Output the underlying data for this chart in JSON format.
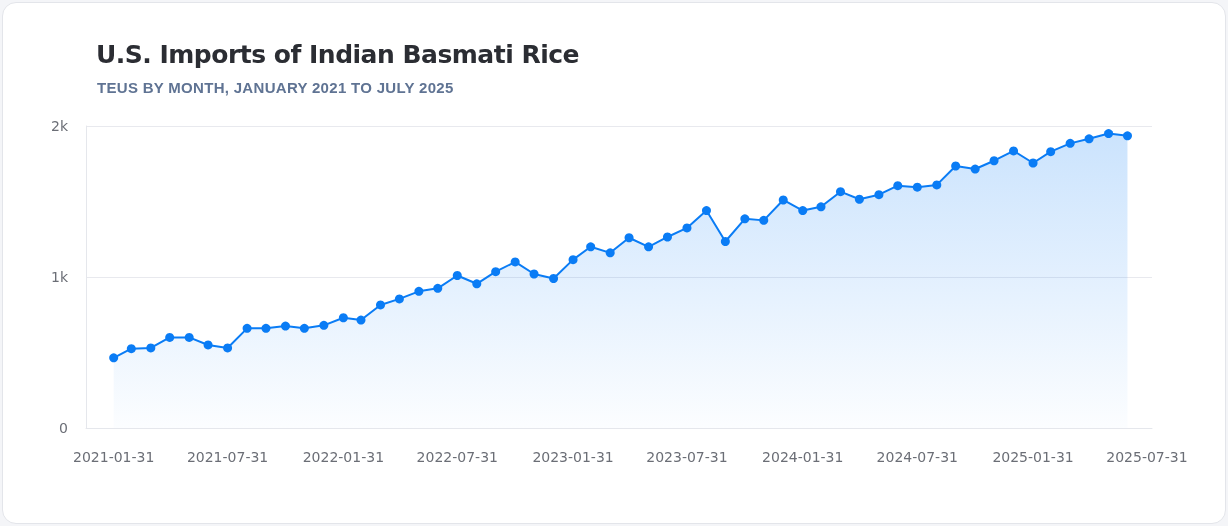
{
  "chart_data": {
    "type": "area",
    "title": "U.S. Imports of Indian Basmati Rice",
    "subtitle": "TEUS BY MONTH, JANUARY 2021 TO JULY 2025",
    "x": [
      "2021-01-31",
      "2021-02-28",
      "2021-03-31",
      "2021-04-30",
      "2021-05-31",
      "2021-06-30",
      "2021-07-31",
      "2021-08-31",
      "2021-09-30",
      "2021-10-31",
      "2021-11-30",
      "2021-12-31",
      "2022-01-31",
      "2022-02-28",
      "2022-03-31",
      "2022-04-30",
      "2022-05-31",
      "2022-06-30",
      "2022-07-31",
      "2022-08-31",
      "2022-09-30",
      "2022-10-31",
      "2022-11-30",
      "2022-12-31",
      "2023-01-31",
      "2023-02-28",
      "2023-03-31",
      "2023-04-30",
      "2023-05-31",
      "2023-06-30",
      "2023-07-31",
      "2023-08-31",
      "2023-09-30",
      "2023-10-31",
      "2023-11-30",
      "2023-12-31",
      "2024-01-31",
      "2024-02-29",
      "2024-03-31",
      "2024-04-30",
      "2024-05-31",
      "2024-06-30",
      "2024-07-31",
      "2024-08-31",
      "2024-09-30",
      "2024-10-31",
      "2024-11-30",
      "2024-12-31",
      "2025-01-31",
      "2025-02-28",
      "2025-03-31",
      "2025-04-30",
      "2025-05-31",
      "2025-06-30"
    ],
    "series": [
      {
        "color": "#0a7cf5",
        "values": [
          465,
          525,
          530,
          600,
          600,
          550,
          530,
          660,
          660,
          675,
          660,
          680,
          730,
          715,
          815,
          855,
          905,
          925,
          1010,
          955,
          1035,
          1100,
          1020,
          990,
          1115,
          1200,
          1160,
          1260,
          1200,
          1265,
          1325,
          1440,
          1235,
          1385,
          1375,
          1510,
          1440,
          1465,
          1565,
          1515,
          1545,
          1605,
          1595,
          1610,
          1735,
          1715,
          1770,
          1835,
          1755,
          1830,
          1885,
          1915,
          1950,
          1935
        ]
      }
    ],
    "xlim": [
      "2020-12-18",
      "2025-08-08"
    ],
    "xticks": [
      {
        "value": "2021-01-31",
        "label": "2021-01-31"
      },
      {
        "value": "2021-07-31",
        "label": "2021-07-31"
      },
      {
        "value": "2022-01-31",
        "label": "2022-01-31"
      },
      {
        "value": "2022-07-31",
        "label": "2022-07-31"
      },
      {
        "value": "2023-01-31",
        "label": "2023-01-31"
      },
      {
        "value": "2023-07-31",
        "label": "2023-07-31"
      },
      {
        "value": "2024-01-31",
        "label": "2024-01-31"
      },
      {
        "value": "2024-07-31",
        "label": "2024-07-31"
      },
      {
        "value": "2025-01-31",
        "label": "2025-01-31"
      },
      {
        "value": "2025-07-31",
        "label": "2025-07-31"
      }
    ],
    "ylim": [
      0,
      2000
    ],
    "yticks": [
      0,
      {
        "value": 1000,
        "label": "1k"
      },
      {
        "value": 2000,
        "label": "2k"
      }
    ],
    "grid": "y",
    "marker": "circle",
    "line_style": "solid"
  }
}
